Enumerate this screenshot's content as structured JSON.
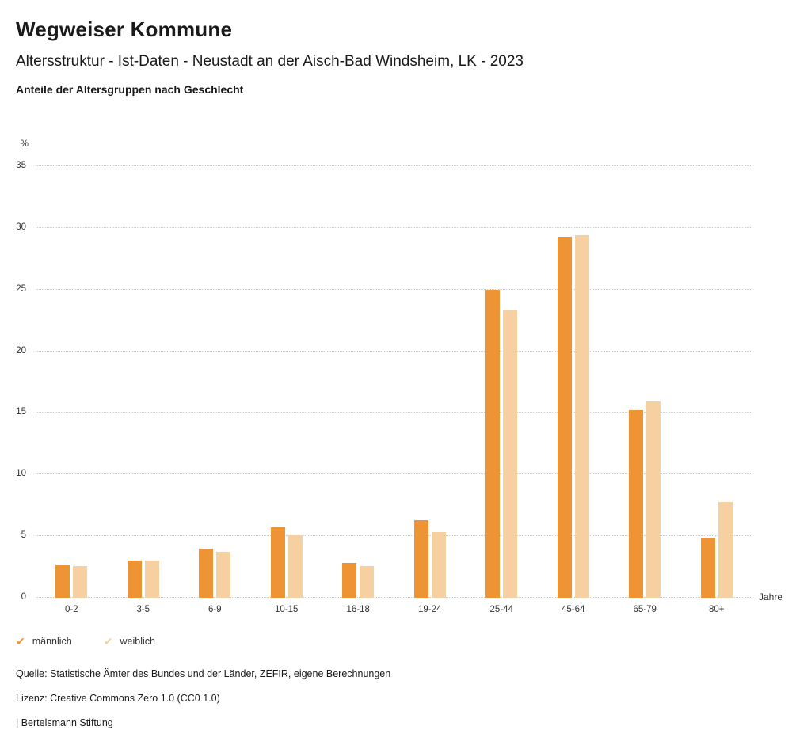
{
  "header": {
    "title": "Wegweiser Kommune",
    "subtitle": "Altersstruktur - Ist-Daten - Neustadt an der Aisch-Bad Windsheim, LK - 2023",
    "chart_title": "Anteile der Altersgruppen nach Geschlecht"
  },
  "chart_data": {
    "type": "bar",
    "categories": [
      "0-2",
      "3-5",
      "6-9",
      "10-15",
      "16-18",
      "19-24",
      "25-44",
      "45-64",
      "65-79",
      "80+"
    ],
    "series": [
      {
        "name": "männlich",
        "color": "#ef9434",
        "values": [
          2.7,
          3.0,
          4.0,
          5.7,
          2.8,
          6.3,
          25.0,
          29.3,
          15.2,
          4.9
        ]
      },
      {
        "name": "weiblich",
        "color": "#f7d0a1",
        "values": [
          2.6,
          3.0,
          3.7,
          5.1,
          2.6,
          5.3,
          23.3,
          29.4,
          15.9,
          7.8
        ]
      }
    ],
    "title": "Anteile der Altersgruppen nach Geschlecht",
    "xlabel": "Jahre",
    "ylabel": "%",
    "ylim": [
      0,
      35
    ],
    "ytick_step": 5,
    "grid": "dotted-horizontal",
    "legend_position": "bottom-left"
  },
  "footer": {
    "source": "Quelle: Statistische Ämter des Bundes und der Länder, ZEFIR, eigene Berechnungen",
    "license": "Lizenz: Creative Commons Zero 1.0 (CC0 1.0)",
    "attribution": "| Bertelsmann Stiftung"
  }
}
